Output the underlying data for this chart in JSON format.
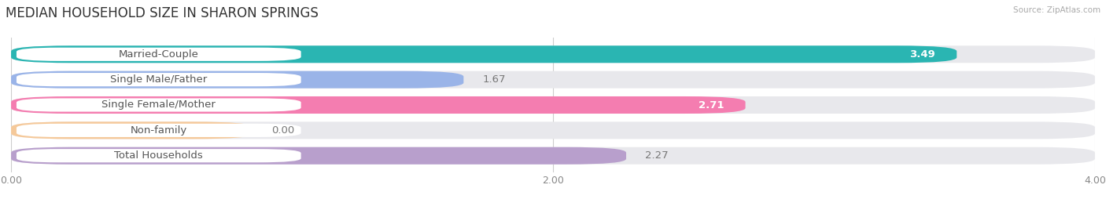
{
  "title": "MEDIAN HOUSEHOLD SIZE IN SHARON SPRINGS",
  "source": "Source: ZipAtlas.com",
  "categories": [
    "Married-Couple",
    "Single Male/Father",
    "Single Female/Mother",
    "Non-family",
    "Total Households"
  ],
  "values": [
    3.49,
    1.67,
    2.71,
    0.0,
    2.27
  ],
  "bar_colors": [
    "#2ab5b2",
    "#9ab4e8",
    "#f47db0",
    "#f5c99a",
    "#b89fcc"
  ],
  "bg_color": "#e8e8ec",
  "value_labels": [
    "3.49",
    "1.67",
    "2.71",
    "0.00",
    "2.27"
  ],
  "value_colors": [
    "white",
    "#777777",
    "white",
    "#777777",
    "#777777"
  ],
  "value_inside": [
    true,
    false,
    true,
    false,
    false
  ],
  "xlim": [
    0,
    4.0
  ],
  "xticks": [
    0.0,
    2.0,
    4.0
  ],
  "xticklabels": [
    "0.00",
    "2.00",
    "4.00"
  ],
  "background_color": "#ffffff",
  "bar_height": 0.68,
  "bar_gap": 1.0,
  "title_fontsize": 12,
  "label_fontsize": 9.5,
  "value_fontsize": 9.5,
  "tick_fontsize": 9
}
